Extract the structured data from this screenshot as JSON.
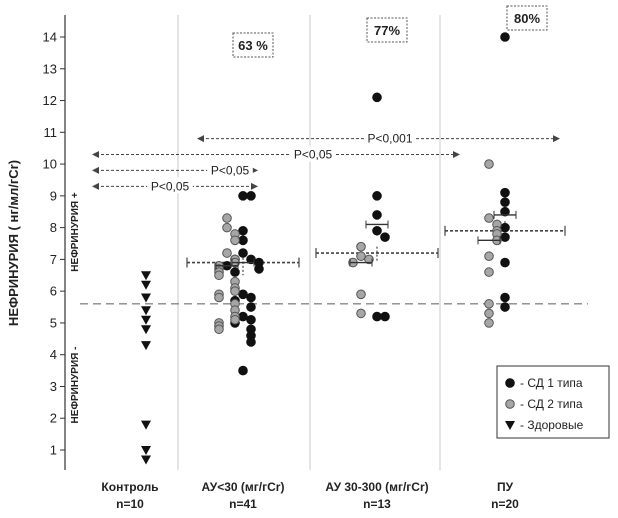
{
  "chart_data": {
    "type": "scatter",
    "ylabel": "НЕФРИНУРИЯ ( нг/мл/гCr)",
    "ylim": [
      0.5,
      14.7
    ],
    "yticks": [
      1,
      2,
      3,
      4,
      5,
      6,
      7,
      8,
      9,
      10,
      11,
      12,
      13,
      14
    ],
    "threshold": 5.6,
    "zone_labels": {
      "above": "НЕФРИНУРИЯ +",
      "below": "НЕФРИНУРИЯ -"
    },
    "categories": [
      {
        "label": "Контроль",
        "n": "n=10",
        "percent": ""
      },
      {
        "label": "АУ<30 (мг/гCr)",
        "n": "n=41",
        "percent": "63 %"
      },
      {
        "label": "АУ 30-300 (мг/гCr)",
        "n": "n=13",
        "percent": "77%"
      },
      {
        "label": "ПУ",
        "n": "n=20",
        "percent": "80%"
      }
    ],
    "series": [
      {
        "name": "- СД 1 типа",
        "marker": "circle",
        "color": "#111111",
        "points": [
          [
            1,
            9.0
          ],
          [
            1,
            9.0
          ],
          [
            1,
            7.9
          ],
          [
            1,
            7.6
          ],
          [
            1,
            7.2
          ],
          [
            1,
            7.0
          ],
          [
            1,
            7.0
          ],
          [
            1,
            6.9
          ],
          [
            1,
            6.9
          ],
          [
            1,
            6.8
          ],
          [
            1,
            6.7
          ],
          [
            1,
            6.6
          ],
          [
            1,
            5.9
          ],
          [
            1,
            5.8
          ],
          [
            1,
            5.7
          ],
          [
            1,
            5.5
          ],
          [
            1,
            5.2
          ],
          [
            1,
            5.1
          ],
          [
            1,
            5.0
          ],
          [
            1,
            4.8
          ],
          [
            1,
            4.6
          ],
          [
            1,
            4.4
          ],
          [
            1,
            3.5
          ],
          [
            2,
            12.1
          ],
          [
            2,
            9.0
          ],
          [
            2,
            8.4
          ],
          [
            2,
            7.9
          ],
          [
            2,
            7.7
          ],
          [
            2,
            5.2
          ],
          [
            2,
            5.2
          ],
          [
            3,
            14.0
          ],
          [
            3,
            9.1
          ],
          [
            3,
            8.8
          ],
          [
            3,
            8.5
          ],
          [
            3,
            8.0
          ],
          [
            3,
            7.7
          ],
          [
            3,
            6.9
          ],
          [
            3,
            5.8
          ],
          [
            3,
            5.5
          ]
        ]
      },
      {
        "name": "- СД 2 типа",
        "marker": "circle",
        "color": "#a6a6a6",
        "points": [
          [
            1,
            8.3
          ],
          [
            1,
            8.0
          ],
          [
            1,
            7.8
          ],
          [
            1,
            7.6
          ],
          [
            1,
            7.2
          ],
          [
            1,
            7.0
          ],
          [
            1,
            6.9
          ],
          [
            1,
            6.8
          ],
          [
            1,
            6.7
          ],
          [
            1,
            6.6
          ],
          [
            1,
            6.5
          ],
          [
            1,
            6.3
          ],
          [
            1,
            6.1
          ],
          [
            1,
            6.0
          ],
          [
            1,
            5.9
          ],
          [
            1,
            5.8
          ],
          [
            1,
            5.6
          ],
          [
            1,
            5.4
          ],
          [
            1,
            5.2
          ],
          [
            1,
            5.1
          ],
          [
            1,
            5.0
          ],
          [
            1,
            4.9
          ],
          [
            1,
            4.8
          ],
          [
            2,
            7.4
          ],
          [
            2,
            7.1
          ],
          [
            2,
            7.0
          ],
          [
            2,
            6.9
          ],
          [
            2,
            5.9
          ],
          [
            2,
            5.3
          ],
          [
            3,
            10.0
          ],
          [
            3,
            8.3
          ],
          [
            3,
            8.1
          ],
          [
            3,
            7.9
          ],
          [
            3,
            7.8
          ],
          [
            3,
            7.6
          ],
          [
            3,
            7.1
          ],
          [
            3,
            6.6
          ],
          [
            3,
            5.6
          ],
          [
            3,
            5.3
          ],
          [
            3,
            5.0
          ]
        ]
      },
      {
        "name": "- Здоровые",
        "marker": "triangle-down",
        "color": "#111111",
        "points": [
          [
            0,
            6.5
          ],
          [
            0,
            6.2
          ],
          [
            0,
            5.8
          ],
          [
            0,
            5.4
          ],
          [
            0,
            5.1
          ],
          [
            0,
            4.8
          ],
          [
            0,
            4.3
          ],
          [
            0,
            1.8
          ],
          [
            0,
            1.0
          ],
          [
            0,
            0.7
          ]
        ]
      }
    ],
    "summaries": [
      {
        "category": 1,
        "series": "- СД 1 типа",
        "mean": 6.9,
        "error": 0.3
      },
      {
        "category": 1,
        "series": "- СД 2 типа",
        "mean": 6.8,
        "error": 0.2
      },
      {
        "category": 2,
        "series": "- СД 1 типа",
        "mean": 8.1,
        "error": 0.15
      },
      {
        "category": 2,
        "series": "- СД 2 типа",
        "mean": 6.9,
        "error": 0.2
      },
      {
        "category": 3,
        "series": "- СД 1 типа",
        "mean": 8.4,
        "error": 0.3
      },
      {
        "category": 3,
        "series": "- СД 2 типа",
        "mean": 7.6,
        "error": 0.25
      }
    ],
    "group_lines": [
      {
        "category": 1,
        "value": 6.9,
        "range": [
          6.5,
          7.3
        ]
      },
      {
        "category": 2,
        "value": 7.2,
        "range": [
          6.9,
          7.4
        ]
      },
      {
        "category": 3,
        "value": 7.9,
        "range": [
          7.6,
          8.2
        ]
      }
    ],
    "comparisons": [
      {
        "label": "P<0,05",
        "from": 0,
        "to": 1,
        "y": 9.3
      },
      {
        "label": "P<0,05",
        "from": 0,
        "to": 1,
        "y": 9.8
      },
      {
        "label": "P<0,05",
        "from": 0,
        "to": 2.5,
        "y": 10.3
      },
      {
        "label": "P<0,001",
        "from": 1,
        "to": 3,
        "y": 10.8
      }
    ],
    "legend_position": "bottom-right",
    "grid": false
  }
}
